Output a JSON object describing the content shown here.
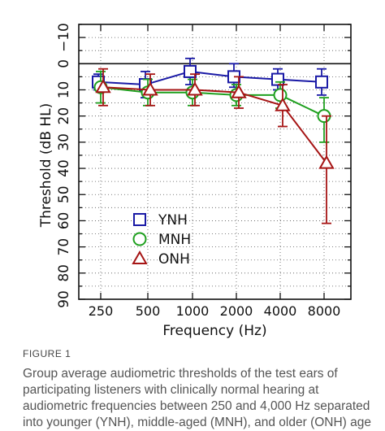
{
  "chart_data": {
    "type": "line",
    "categories": [
      "250",
      "500",
      "1000",
      "2000",
      "4000",
      "8000"
    ],
    "xlabel": "Frequency (Hz)",
    "ylabel": "Threshold (dB HL)",
    "ylim": [
      -15,
      90
    ],
    "y_inverted": true,
    "yticks": [
      -10,
      0,
      10,
      20,
      30,
      40,
      50,
      60,
      70,
      80,
      90
    ],
    "ytick_labels": [
      "−10",
      "0",
      "10",
      "20",
      "30",
      "40",
      "50",
      "60",
      "70",
      "80",
      "90"
    ],
    "reference_line": 0,
    "grid": true,
    "legend_position": "lower-left",
    "series": [
      {
        "name": "YNH",
        "marker": "square",
        "color": "#1a1aa6",
        "values": [
          7,
          8,
          3,
          5,
          6,
          7
        ],
        "err_low": [
          3,
          5,
          5,
          5,
          4,
          5
        ],
        "err_high": [
          3,
          5,
          5,
          4,
          4,
          5
        ]
      },
      {
        "name": "MNH",
        "marker": "circle",
        "color": "#1fa01f",
        "values": [
          9,
          11,
          11,
          12,
          12,
          20
        ],
        "err_low": [
          6,
          5,
          5,
          4,
          5,
          7
        ],
        "err_high": [
          6,
          5,
          5,
          4,
          5,
          10
        ]
      },
      {
        "name": "ONH",
        "marker": "triangle",
        "color": "#a61515",
        "values": [
          9,
          10,
          10,
          11,
          16,
          38
        ],
        "err_low": [
          7,
          6,
          6,
          6,
          8,
          18
        ],
        "err_high": [
          7,
          6,
          6,
          6,
          8,
          23
        ]
      }
    ]
  },
  "figure": {
    "label": "FIGURE 1",
    "caption": "Group average audiometric thresholds of the test ears of participating listeners with clinically normal hearing at audiometric frequencies between 250 and 4,000 Hz separated into younger (YNH), middle-aged (MNH), and older (ONH) age"
  }
}
